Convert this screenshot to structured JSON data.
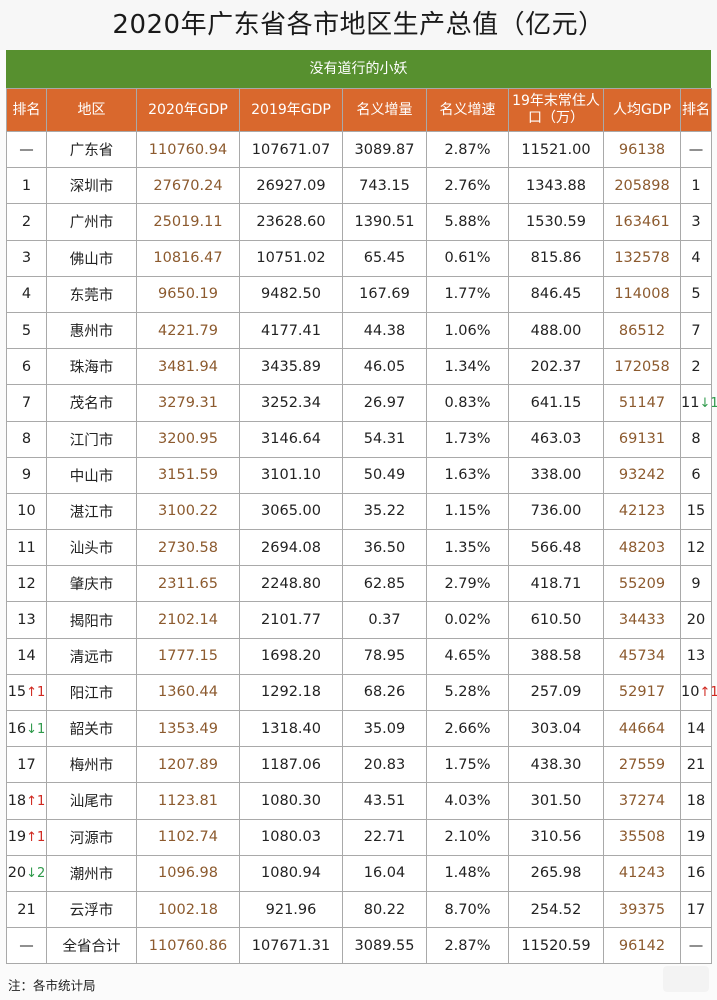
{
  "title": "2020年广东省各市地区生产总值（亿元）",
  "subtitle": "没有道行的小妖",
  "headers": [
    "排名",
    "地区",
    "2020年GDP",
    "2019年GDP",
    "名义增量",
    "名义增速",
    "19年末常住人口（万）",
    "人均GDP",
    "排名"
  ],
  "rows": [
    {
      "rank": "—",
      "rank_change": "",
      "rank_dir": "",
      "region": "广东省",
      "gdp2020": "110760.94",
      "gdp2019": "107671.07",
      "increase": "3089.87",
      "growth": "2.87%",
      "population": "11521.00",
      "per_capita": "96138",
      "pc_rank": "—",
      "pc_change": "",
      "pc_dir": ""
    },
    {
      "rank": "1",
      "rank_change": "",
      "rank_dir": "",
      "region": "深圳市",
      "gdp2020": "27670.24",
      "gdp2019": "26927.09",
      "increase": "743.15",
      "growth": "2.76%",
      "population": "1343.88",
      "per_capita": "205898",
      "pc_rank": "1",
      "pc_change": "",
      "pc_dir": ""
    },
    {
      "rank": "2",
      "rank_change": "",
      "rank_dir": "",
      "region": "广州市",
      "gdp2020": "25019.11",
      "gdp2019": "23628.60",
      "increase": "1390.51",
      "growth": "5.88%",
      "population": "1530.59",
      "per_capita": "163461",
      "pc_rank": "3",
      "pc_change": "",
      "pc_dir": ""
    },
    {
      "rank": "3",
      "rank_change": "",
      "rank_dir": "",
      "region": "佛山市",
      "gdp2020": "10816.47",
      "gdp2019": "10751.02",
      "increase": "65.45",
      "growth": "0.61%",
      "population": "815.86",
      "per_capita": "132578",
      "pc_rank": "4",
      "pc_change": "",
      "pc_dir": ""
    },
    {
      "rank": "4",
      "rank_change": "",
      "rank_dir": "",
      "region": "东莞市",
      "gdp2020": "9650.19",
      "gdp2019": "9482.50",
      "increase": "167.69",
      "growth": "1.77%",
      "population": "846.45",
      "per_capita": "114008",
      "pc_rank": "5",
      "pc_change": "",
      "pc_dir": ""
    },
    {
      "rank": "5",
      "rank_change": "",
      "rank_dir": "",
      "region": "惠州市",
      "gdp2020": "4221.79",
      "gdp2019": "4177.41",
      "increase": "44.38",
      "growth": "1.06%",
      "population": "488.00",
      "per_capita": "86512",
      "pc_rank": "7",
      "pc_change": "",
      "pc_dir": ""
    },
    {
      "rank": "6",
      "rank_change": "",
      "rank_dir": "",
      "region": "珠海市",
      "gdp2020": "3481.94",
      "gdp2019": "3435.89",
      "increase": "46.05",
      "growth": "1.34%",
      "population": "202.37",
      "per_capita": "172058",
      "pc_rank": "2",
      "pc_change": "",
      "pc_dir": ""
    },
    {
      "rank": "7",
      "rank_change": "",
      "rank_dir": "",
      "region": "茂名市",
      "gdp2020": "3279.31",
      "gdp2019": "3252.34",
      "increase": "26.97",
      "growth": "0.83%",
      "population": "641.15",
      "per_capita": "51147",
      "pc_rank": "11",
      "pc_change": "↓1",
      "pc_dir": "down"
    },
    {
      "rank": "8",
      "rank_change": "",
      "rank_dir": "",
      "region": "江门市",
      "gdp2020": "3200.95",
      "gdp2019": "3146.64",
      "increase": "54.31",
      "growth": "1.73%",
      "population": "463.03",
      "per_capita": "69131",
      "pc_rank": "8",
      "pc_change": "",
      "pc_dir": ""
    },
    {
      "rank": "9",
      "rank_change": "",
      "rank_dir": "",
      "region": "中山市",
      "gdp2020": "3151.59",
      "gdp2019": "3101.10",
      "increase": "50.49",
      "growth": "1.63%",
      "population": "338.00",
      "per_capita": "93242",
      "pc_rank": "6",
      "pc_change": "",
      "pc_dir": ""
    },
    {
      "rank": "10",
      "rank_change": "",
      "rank_dir": "",
      "region": "湛江市",
      "gdp2020": "3100.22",
      "gdp2019": "3065.00",
      "increase": "35.22",
      "growth": "1.15%",
      "population": "736.00",
      "per_capita": "42123",
      "pc_rank": "15",
      "pc_change": "",
      "pc_dir": ""
    },
    {
      "rank": "11",
      "rank_change": "",
      "rank_dir": "",
      "region": "汕头市",
      "gdp2020": "2730.58",
      "gdp2019": "2694.08",
      "increase": "36.50",
      "growth": "1.35%",
      "population": "566.48",
      "per_capita": "48203",
      "pc_rank": "12",
      "pc_change": "",
      "pc_dir": ""
    },
    {
      "rank": "12",
      "rank_change": "",
      "rank_dir": "",
      "region": "肇庆市",
      "gdp2020": "2311.65",
      "gdp2019": "2248.80",
      "increase": "62.85",
      "growth": "2.79%",
      "population": "418.71",
      "per_capita": "55209",
      "pc_rank": "9",
      "pc_change": "",
      "pc_dir": ""
    },
    {
      "rank": "13",
      "rank_change": "",
      "rank_dir": "",
      "region": "揭阳市",
      "gdp2020": "2102.14",
      "gdp2019": "2101.77",
      "increase": "0.37",
      "growth": "0.02%",
      "population": "610.50",
      "per_capita": "34433",
      "pc_rank": "20",
      "pc_change": "",
      "pc_dir": ""
    },
    {
      "rank": "14",
      "rank_change": "",
      "rank_dir": "",
      "region": "清远市",
      "gdp2020": "1777.15",
      "gdp2019": "1698.20",
      "increase": "78.95",
      "growth": "4.65%",
      "population": "388.58",
      "per_capita": "45734",
      "pc_rank": "13",
      "pc_change": "",
      "pc_dir": ""
    },
    {
      "rank": "15",
      "rank_change": "↑1",
      "rank_dir": "up",
      "region": "阳江市",
      "gdp2020": "1360.44",
      "gdp2019": "1292.18",
      "increase": "68.26",
      "growth": "5.28%",
      "population": "257.09",
      "per_capita": "52917",
      "pc_rank": "10",
      "pc_change": "↑1",
      "pc_dir": "up"
    },
    {
      "rank": "16",
      "rank_change": "↓1",
      "rank_dir": "down",
      "region": "韶关市",
      "gdp2020": "1353.49",
      "gdp2019": "1318.40",
      "increase": "35.09",
      "growth": "2.66%",
      "population": "303.04",
      "per_capita": "44664",
      "pc_rank": "14",
      "pc_change": "",
      "pc_dir": ""
    },
    {
      "rank": "17",
      "rank_change": "",
      "rank_dir": "",
      "region": "梅州市",
      "gdp2020": "1207.89",
      "gdp2019": "1187.06",
      "increase": "20.83",
      "growth": "1.75%",
      "population": "438.30",
      "per_capita": "27559",
      "pc_rank": "21",
      "pc_change": "",
      "pc_dir": ""
    },
    {
      "rank": "18",
      "rank_change": "↑1",
      "rank_dir": "up",
      "region": "汕尾市",
      "gdp2020": "1123.81",
      "gdp2019": "1080.30",
      "increase": "43.51",
      "growth": "4.03%",
      "population": "301.50",
      "per_capita": "37274",
      "pc_rank": "18",
      "pc_change": "",
      "pc_dir": ""
    },
    {
      "rank": "19",
      "rank_change": "↑1",
      "rank_dir": "up",
      "region": "河源市",
      "gdp2020": "1102.74",
      "gdp2019": "1080.03",
      "increase": "22.71",
      "growth": "2.10%",
      "population": "310.56",
      "per_capita": "35508",
      "pc_rank": "19",
      "pc_change": "",
      "pc_dir": ""
    },
    {
      "rank": "20",
      "rank_change": "↓2",
      "rank_dir": "down",
      "region": "潮州市",
      "gdp2020": "1096.98",
      "gdp2019": "1080.94",
      "increase": "16.04",
      "growth": "1.48%",
      "population": "265.98",
      "per_capita": "41243",
      "pc_rank": "16",
      "pc_change": "",
      "pc_dir": ""
    },
    {
      "rank": "21",
      "rank_change": "",
      "rank_dir": "",
      "region": "云浮市",
      "gdp2020": "1002.18",
      "gdp2019": "921.96",
      "increase": "80.22",
      "growth": "8.70%",
      "population": "254.52",
      "per_capita": "39375",
      "pc_rank": "17",
      "pc_change": "",
      "pc_dir": ""
    },
    {
      "rank": "—",
      "rank_change": "",
      "rank_dir": "",
      "region": "全省合计",
      "gdp2020": "110760.86",
      "gdp2019": "107671.31",
      "increase": "3089.55",
      "growth": "2.87%",
      "population": "11520.59",
      "per_capita": "96142",
      "pc_rank": "—",
      "pc_change": "",
      "pc_dir": ""
    }
  ],
  "footnote": "注：各市统计局",
  "colors": {
    "header_bg": "#d9682d",
    "subtitle_bg": "#57902f",
    "value_brown": "#8c5a2e",
    "arrow_up": "#d0281f",
    "arrow_down": "#2f9a4b"
  }
}
